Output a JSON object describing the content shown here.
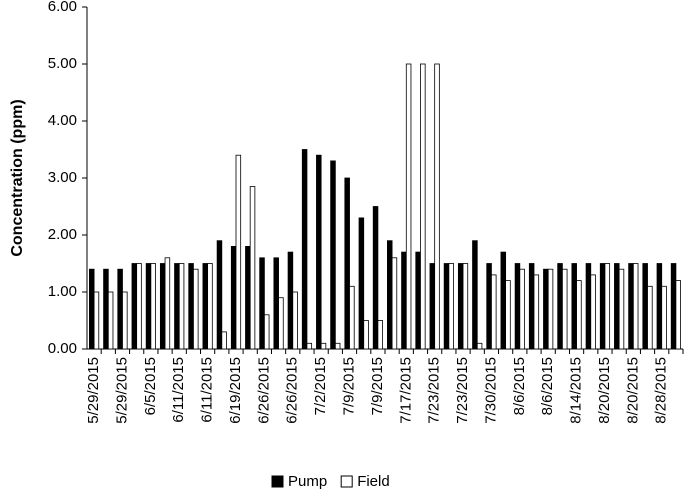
{
  "chart_data": {
    "type": "bar",
    "y_label": "Concentration (ppm)",
    "categories": [
      "5/29/2015",
      null,
      "5/29/2015",
      null,
      "6/5/2015",
      null,
      "6/11/2015",
      null,
      "6/11/2015",
      null,
      "6/19/2015",
      null,
      "6/26/2015",
      null,
      "6/26/2015",
      null,
      "7/2/2015",
      null,
      "7/9/2015",
      null,
      "7/9/2015",
      null,
      "7/17/2015",
      null,
      "7/23/2015",
      null,
      "7/23/2015",
      null,
      "7/30/2015",
      null,
      "8/6/2015",
      null,
      "8/6/2015",
      null,
      "8/14/2015",
      null,
      "8/20/2015",
      null,
      "8/20/2015",
      null,
      "8/28/2015",
      null
    ],
    "series": [
      {
        "name": "Pump",
        "color": "#000000",
        "values": [
          1.4,
          1.4,
          1.4,
          1.5,
          1.5,
          1.5,
          1.5,
          1.5,
          1.5,
          1.9,
          1.8,
          1.8,
          1.6,
          1.6,
          1.7,
          3.5,
          3.4,
          3.3,
          3.0,
          2.3,
          2.5,
          1.9,
          1.7,
          1.7,
          1.5,
          1.5,
          1.5,
          1.9,
          1.5,
          1.7,
          1.5,
          1.5,
          1.4,
          1.5,
          1.5,
          1.5,
          1.5,
          1.5,
          1.5,
          1.5,
          1.5,
          1.5
        ]
      },
      {
        "name": "Field",
        "color": "#ffffff",
        "values": [
          1.0,
          1.0,
          1.0,
          1.5,
          1.5,
          1.6,
          1.5,
          1.4,
          1.5,
          0.3,
          3.4,
          2.85,
          0.6,
          0.9,
          1.0,
          0.1,
          0.1,
          0.1,
          1.1,
          0.5,
          0.5,
          1.6,
          5.0,
          5.0,
          5.0,
          1.5,
          1.5,
          0.1,
          1.3,
          1.2,
          1.4,
          1.3,
          1.4,
          1.4,
          1.2,
          1.3,
          1.5,
          1.4,
          1.5,
          1.1,
          1.1,
          1.2
        ]
      }
    ],
    "ylim": [
      0,
      6
    ],
    "yticks": [
      {
        "value": 0,
        "label": "0.00"
      },
      {
        "value": 1,
        "label": "1.00"
      },
      {
        "value": 2,
        "label": "2.00"
      },
      {
        "value": 3,
        "label": "3.00"
      },
      {
        "value": 4,
        "label": "4.00"
      },
      {
        "value": 5,
        "label": "5.00"
      },
      {
        "value": 6,
        "label": "6.00"
      }
    ],
    "grid": false,
    "legend": "bottom"
  }
}
